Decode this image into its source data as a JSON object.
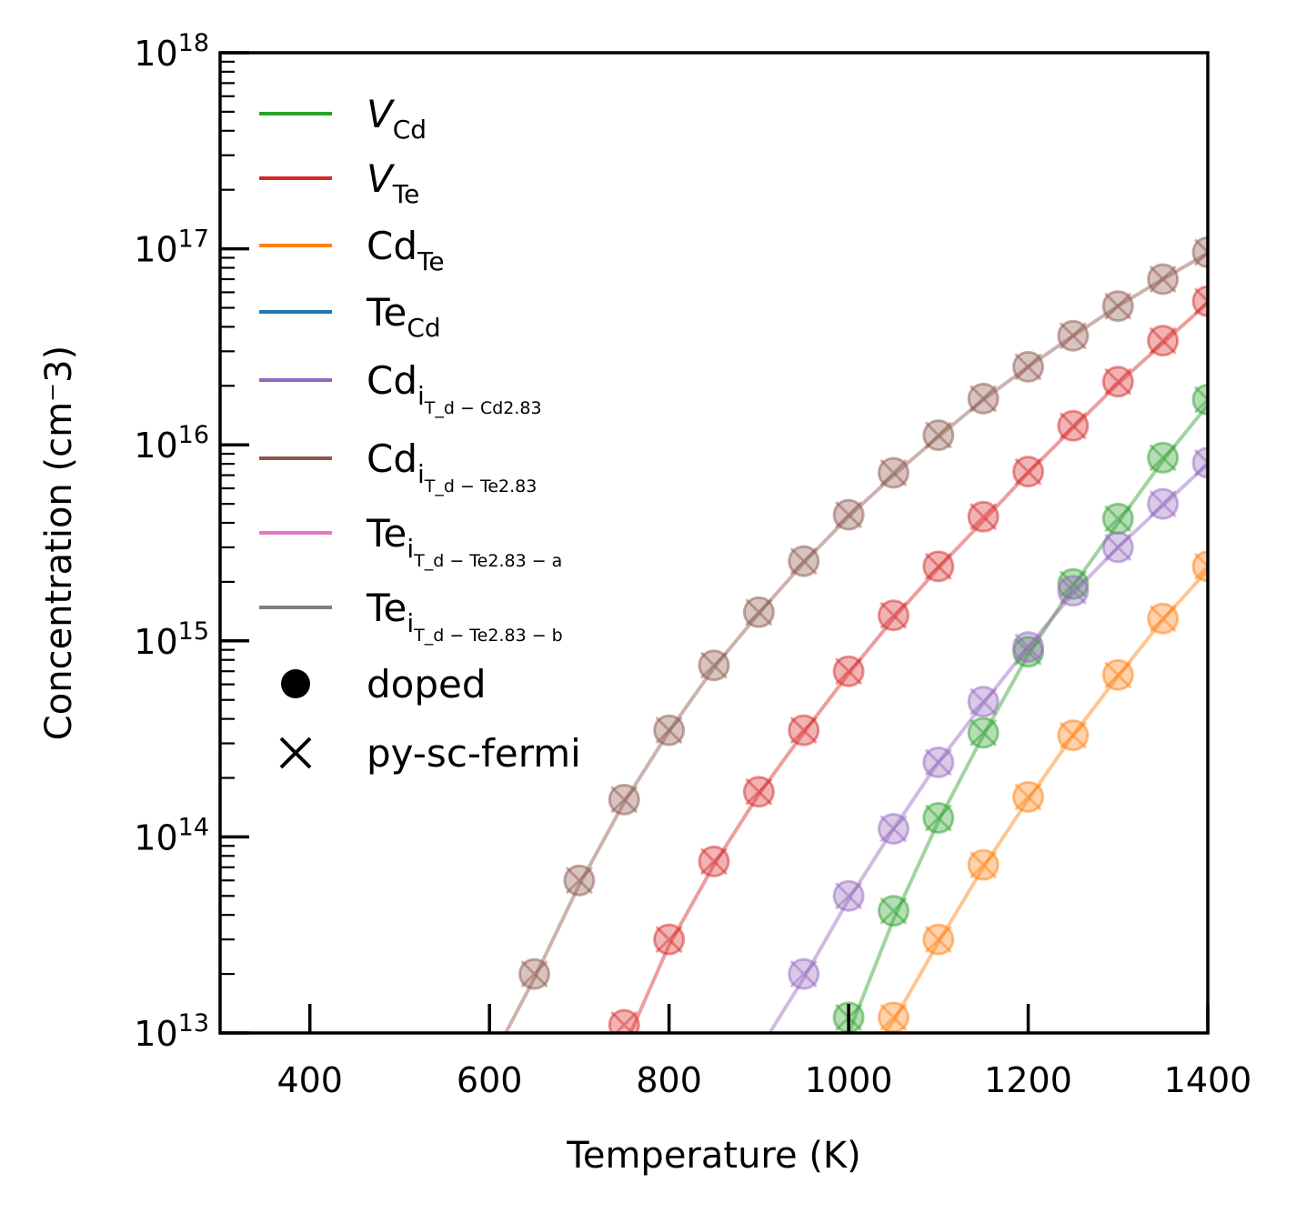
{
  "chart_data": {
    "type": "scatter",
    "xlabel": "Temperature (K)",
    "ylabel": "Concentration (cm⁻3)",
    "xlim": [
      300,
      1400
    ],
    "ylim": [
      10000000000000.0,
      1e+18
    ],
    "yscale": "log",
    "xticks": [
      400,
      600,
      800,
      1000,
      1200,
      1400
    ],
    "yticks": [
      {
        "base": "10",
        "exp": "13",
        "value": 10000000000000.0
      },
      {
        "base": "10",
        "exp": "14",
        "value": 100000000000000.0
      },
      {
        "base": "10",
        "exp": "15",
        "value": 1000000000000000.0
      },
      {
        "base": "10",
        "exp": "16",
        "value": 1e+16
      },
      {
        "base": "10",
        "exp": "17",
        "value": 1e+17
      },
      {
        "base": "10",
        "exp": "18",
        "value": 1e+18
      }
    ],
    "grid": false,
    "legend_position": "upper-left",
    "series": [
      {
        "name": "V_Cd",
        "base": "V",
        "sub": "Cd",
        "subsub": "",
        "italic": true,
        "color": "#2ca02c",
        "line": [
          [
            1000,
            10000000000000.0
          ],
          [
            1050,
            38000000000000.0
          ],
          [
            1100,
            120000000000000.0
          ],
          [
            1150,
            330000000000000.0
          ],
          [
            1200,
            850000000000000.0
          ],
          [
            1250,
            1900000000000000.0
          ],
          [
            1300,
            4000000000000000.0
          ],
          [
            1350,
            8300000000000000.0
          ],
          [
            1400,
            1.6e+16
          ]
        ],
        "points": [
          [
            1000,
            12000000000000.0
          ],
          [
            1050,
            42000000000000.0
          ],
          [
            1100,
            125000000000000.0
          ],
          [
            1150,
            340000000000000.0
          ],
          [
            1200,
            880000000000000.0
          ],
          [
            1250,
            1950000000000000.0
          ],
          [
            1300,
            4200000000000000.0
          ],
          [
            1350,
            8600000000000000.0
          ],
          [
            1400,
            1.7e+16
          ]
        ]
      },
      {
        "name": "V_Te",
        "base": "V",
        "sub": "Te",
        "subsub": "",
        "italic": true,
        "color": "#d62728",
        "line": [
          [
            757,
            10000000000000.0
          ],
          [
            800,
            28000000000000.0
          ],
          [
            850,
            72000000000000.0
          ],
          [
            900,
            165000000000000.0
          ],
          [
            950,
            340000000000000.0
          ],
          [
            1000,
            680000000000000.0
          ],
          [
            1050,
            1300000000000000.0
          ],
          [
            1100,
            2350000000000000.0
          ],
          [
            1150,
            4100000000000000.0
          ],
          [
            1200,
            7200000000000000.0
          ],
          [
            1250,
            1.22e+16
          ],
          [
            1300,
            2.05e+16
          ],
          [
            1350,
            3.3e+16
          ],
          [
            1400,
            5.3e+16
          ]
        ],
        "points": [
          [
            750,
            11000000000000.0
          ],
          [
            800,
            30000000000000.0
          ],
          [
            850,
            75000000000000.0
          ],
          [
            900,
            170000000000000.0
          ],
          [
            950,
            350000000000000.0
          ],
          [
            1000,
            700000000000000.0
          ],
          [
            1050,
            1350000000000000.0
          ],
          [
            1100,
            2400000000000000.0
          ],
          [
            1150,
            4300000000000000.0
          ],
          [
            1200,
            7300000000000000.0
          ],
          [
            1250,
            1.25e+16
          ],
          [
            1300,
            2.1e+16
          ],
          [
            1350,
            3.4e+16
          ],
          [
            1400,
            5.4e+16
          ]
        ]
      },
      {
        "name": "Cd_Te",
        "base": "Cd",
        "sub": "Te",
        "subsub": "",
        "italic": false,
        "color": "#ff7f0e",
        "line": [
          [
            1040,
            10000000000000.0
          ],
          [
            1050,
            11500000000000.0
          ],
          [
            1100,
            29000000000000.0
          ],
          [
            1150,
            70000000000000.0
          ],
          [
            1200,
            155000000000000.0
          ],
          [
            1250,
            330000000000000.0
          ],
          [
            1300,
            660000000000000.0
          ],
          [
            1350,
            1280000000000000.0
          ],
          [
            1400,
            2300000000000000.0
          ]
        ],
        "points": [
          [
            1050,
            12000000000000.0
          ],
          [
            1100,
            30000000000000.0
          ],
          [
            1150,
            72000000000000.0
          ],
          [
            1200,
            160000000000000.0
          ],
          [
            1250,
            330000000000000.0
          ],
          [
            1300,
            670000000000000.0
          ],
          [
            1350,
            1300000000000000.0
          ],
          [
            1400,
            2400000000000000.0
          ]
        ]
      },
      {
        "name": "Te_Cd",
        "base": "Te",
        "sub": "Cd",
        "subsub": "",
        "italic": false,
        "color": "#1f77b4",
        "line": [],
        "points": []
      },
      {
        "name": "Cd_i_Td-Cd2.83",
        "base": "Cd",
        "sub": "i",
        "subsub": "T_d − Cd2.83",
        "italic": false,
        "color": "#9467bd",
        "line": [
          [
            912,
            10000000000000.0
          ],
          [
            950,
            19000000000000.0
          ],
          [
            1000,
            48000000000000.0
          ],
          [
            1050,
            110000000000000.0
          ],
          [
            1100,
            240000000000000.0
          ],
          [
            1150,
            480000000000000.0
          ],
          [
            1200,
            930000000000000.0
          ],
          [
            1250,
            1750000000000000.0
          ],
          [
            1300,
            3000000000000000.0
          ],
          [
            1350,
            4900000000000000.0
          ],
          [
            1400,
            8000000000000000.0
          ]
        ],
        "points": [
          [
            950,
            20000000000000.0
          ],
          [
            1000,
            50000000000000.0
          ],
          [
            1050,
            110000000000000.0
          ],
          [
            1100,
            240000000000000.0
          ],
          [
            1150,
            490000000000000.0
          ],
          [
            1200,
            930000000000000.0
          ],
          [
            1250,
            1800000000000000.0
          ],
          [
            1300,
            3000000000000000.0
          ],
          [
            1350,
            5000000000000000.0
          ],
          [
            1400,
            8100000000000000.0
          ]
        ]
      },
      {
        "name": "Cd_i_Td-Te2.83",
        "base": "Cd",
        "sub": "i",
        "subsub": "T_d − Te2.83",
        "italic": false,
        "color": "#8c564b",
        "line": [
          [
            618,
            10000000000000.0
          ],
          [
            650,
            19000000000000.0
          ],
          [
            700,
            57000000000000.0
          ],
          [
            750,
            150000000000000.0
          ],
          [
            800,
            345000000000000.0
          ],
          [
            850,
            730000000000000.0
          ],
          [
            900,
            1380000000000000.0
          ],
          [
            950,
            2500000000000000.0
          ],
          [
            1000,
            4300000000000000.0
          ],
          [
            1050,
            7000000000000000.0
          ],
          [
            1100,
            1.1e+16
          ],
          [
            1150,
            1.7e+16
          ],
          [
            1200,
            2.5e+16
          ],
          [
            1250,
            3.6e+16
          ],
          [
            1300,
            5.1e+16
          ],
          [
            1350,
            7e+16
          ],
          [
            1400,
            9.5e+16
          ]
        ],
        "points": [
          [
            650,
            20000000000000.0
          ],
          [
            700,
            60000000000000.0
          ],
          [
            750,
            155000000000000.0
          ],
          [
            800,
            350000000000000.0
          ],
          [
            850,
            750000000000000.0
          ],
          [
            900,
            1400000000000000.0
          ],
          [
            950,
            2550000000000000.0
          ],
          [
            1000,
            4400000000000000.0
          ],
          [
            1050,
            7200000000000000.0
          ],
          [
            1100,
            1.12e+16
          ],
          [
            1150,
            1.72e+16
          ],
          [
            1200,
            2.5e+16
          ],
          [
            1250,
            3.6e+16
          ],
          [
            1300,
            5.1e+16
          ],
          [
            1350,
            7e+16
          ],
          [
            1400,
            9.6e+16
          ]
        ]
      },
      {
        "name": "Te_i_Td-Te2.83-a",
        "base": "Te",
        "sub": "i",
        "subsub": "T_d − Te2.83 − a",
        "italic": false,
        "color": "#e377c2",
        "line": [],
        "points": []
      },
      {
        "name": "Te_i_Td-Te2.83-b",
        "base": "Te",
        "sub": "i",
        "subsub": "T_d − Te2.83 − b",
        "italic": false,
        "color": "#7f7f7f",
        "line": [],
        "points": []
      }
    ],
    "marker_legend": [
      {
        "marker": "circle",
        "label": "doped"
      },
      {
        "marker": "x",
        "label": "py-sc-fermi"
      }
    ]
  }
}
